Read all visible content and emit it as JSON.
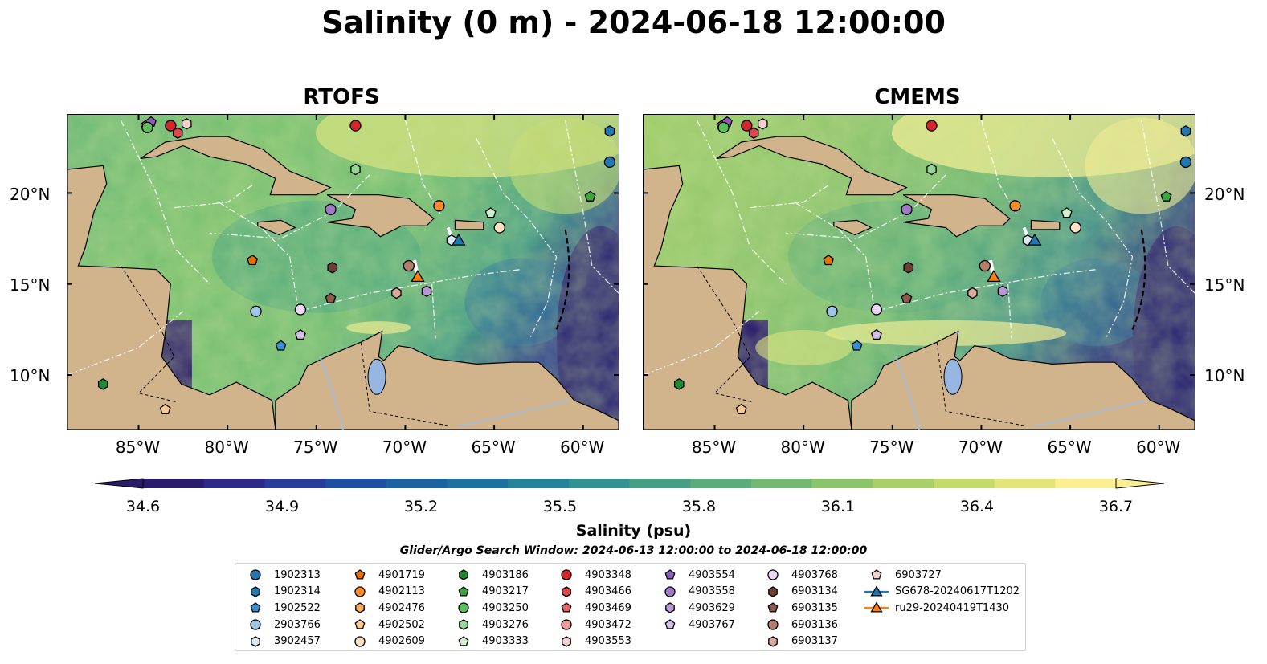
{
  "title": "Salinity (0 m) - 2024-06-18 12:00:00",
  "panels": [
    {
      "title": "RTOFS"
    },
    {
      "title": "CMEMS"
    }
  ],
  "lat_labels": [
    "20°N",
    "15°N",
    "10°N"
  ],
  "lon_labels": [
    "85°W",
    "80°W",
    "75°W",
    "70°W",
    "65°W",
    "60°W"
  ],
  "colorbar": {
    "label": "Salinity (psu)",
    "min": 34.6,
    "max": 36.7,
    "ticks": [
      "34.6",
      "34.9",
      "35.2",
      "35.5",
      "35.8",
      "36.1",
      "36.4",
      "36.7"
    ],
    "colors": [
      "#2b1b6b",
      "#2c2a86",
      "#283d9a",
      "#1f50a0",
      "#1a62a0",
      "#1d729d",
      "#258297",
      "#33918f",
      "#469f85",
      "#5bab7b",
      "#72b873",
      "#8cc46c",
      "#a8cf69",
      "#c5da6d",
      "#e2e57a",
      "#fbef93"
    ]
  },
  "search_window": "Glider/Argo Search Window: 2024-06-13 12:00:00 to 2024-06-18 12:00:00",
  "legend": [
    {
      "label": "1902313",
      "color": "#1f77b4",
      "marker": "circle"
    },
    {
      "label": "1902314",
      "color": "#1f77b4",
      "marker": "hexagon"
    },
    {
      "label": "1902522",
      "color": "#3a8fd0",
      "marker": "pentagon"
    },
    {
      "label": "2903766",
      "color": "#9ec6e8",
      "marker": "circle"
    },
    {
      "label": "3902457",
      "color": "#dce9f7",
      "marker": "hexagon"
    },
    {
      "label": "4901719",
      "color": "#e6710a",
      "marker": "pentagon"
    },
    {
      "label": "4902113",
      "color": "#ff8c2a",
      "marker": "circle"
    },
    {
      "label": "4902476",
      "color": "#ffa860",
      "marker": "hexagon"
    },
    {
      "label": "4902502",
      "color": "#ffc890",
      "marker": "pentagon"
    },
    {
      "label": "4902609",
      "color": "#ffe2c4",
      "marker": "circle"
    },
    {
      "label": "4903186",
      "color": "#1e8c2c",
      "marker": "hexagon"
    },
    {
      "label": "4903217",
      "color": "#3aa83a",
      "marker": "pentagon"
    },
    {
      "label": "4903250",
      "color": "#5bc05b",
      "marker": "circle"
    },
    {
      "label": "4903276",
      "color": "#94d894",
      "marker": "hexagon"
    },
    {
      "label": "4903333",
      "color": "#cff2cc",
      "marker": "pentagon"
    },
    {
      "label": "4903348",
      "color": "#d62728",
      "marker": "circle"
    },
    {
      "label": "4903466",
      "color": "#e0484a",
      "marker": "hexagon"
    },
    {
      "label": "4903469",
      "color": "#e86364",
      "marker": "pentagon"
    },
    {
      "label": "4903472",
      "color": "#f19a98",
      "marker": "circle"
    },
    {
      "label": "4903553",
      "color": "#f9cfcd",
      "marker": "hexagon"
    },
    {
      "label": "4903554",
      "color": "#8b5cb8",
      "marker": "pentagon"
    },
    {
      "label": "4903558",
      "color": "#a07ac8",
      "marker": "circle"
    },
    {
      "label": "4903629",
      "color": "#b898d8",
      "marker": "hexagon"
    },
    {
      "label": "4903767",
      "color": "#d2bce8",
      "marker": "pentagon"
    },
    {
      "label": "4903768",
      "color": "#ead8f6",
      "marker": "circle"
    },
    {
      "label": "6903134",
      "color": "#6e3f2f",
      "marker": "hexagon"
    },
    {
      "label": "6903135",
      "color": "#8c5a48",
      "marker": "pentagon"
    },
    {
      "label": "6903136",
      "color": "#b27e6a",
      "marker": "circle"
    },
    {
      "label": "6903137",
      "color": "#dca898",
      "marker": "hexagon"
    },
    {
      "label": "6903727",
      "color": "#f6d6c8",
      "marker": "pentagon"
    },
    {
      "label": "SG678-20240617T1202",
      "color": "#1f77b4",
      "marker": "triangle"
    },
    {
      "label": "ru29-20240419T1430",
      "color": "#ff7f0e",
      "marker": "triangle"
    }
  ]
}
